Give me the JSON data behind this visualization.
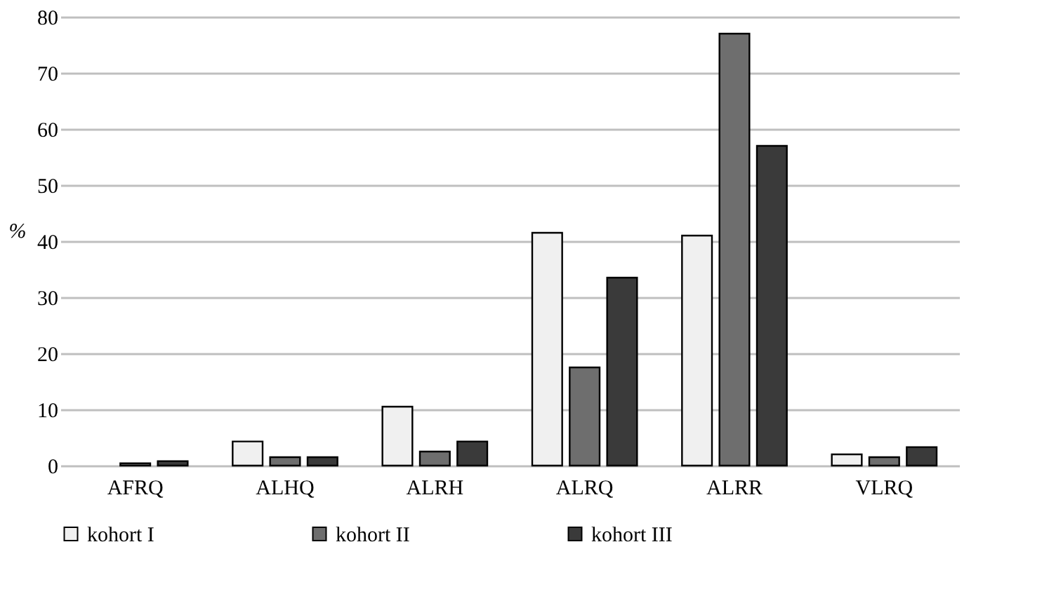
{
  "chart_data": {
    "type": "bar",
    "ylabel": "%",
    "categories": [
      "AFRQ",
      "ALHQ",
      "ALRH",
      "ALRQ",
      "ALRR",
      "VLRQ"
    ],
    "series": [
      {
        "name": "kohort I",
        "color": "#f0f0f0",
        "values": [
          null,
          4.3,
          10.5,
          41.5,
          41,
          2
        ]
      },
      {
        "name": "kohort II",
        "color": "#6e6e6e",
        "values": [
          0.4,
          1.5,
          2.5,
          17.5,
          77,
          1.5
        ]
      },
      {
        "name": "kohort III",
        "color": "#3a3a3a",
        "values": [
          0.8,
          1.5,
          4.3,
          33.5,
          57,
          3.3
        ]
      }
    ],
    "ylim": [
      0,
      80
    ],
    "yticks": [
      0,
      10,
      20,
      30,
      40,
      50,
      60,
      70,
      80
    ],
    "grid": "y",
    "legend": "bottom"
  }
}
